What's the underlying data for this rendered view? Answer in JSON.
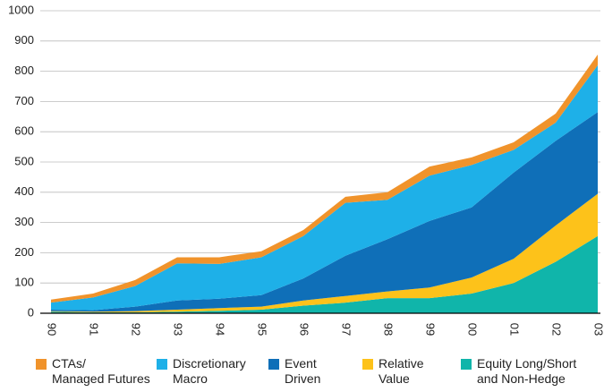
{
  "chart_data": {
    "type": "stacked_area",
    "categories": [
      "90",
      "91",
      "92",
      "93",
      "94",
      "95",
      "96",
      "97",
      "98",
      "99",
      "00",
      "01",
      "02",
      "03"
    ],
    "series": [
      {
        "name": "CTAs/\nManaged Futures",
        "color": "#f0932b",
        "values": [
          10,
          13,
          20,
          20,
          22,
          20,
          20,
          20,
          25,
          30,
          25,
          25,
          30,
          35
        ]
      },
      {
        "name": "Discretionary\nMacro",
        "color": "#1eb0e8",
        "values": [
          23,
          42,
          68,
          123,
          115,
          125,
          140,
          175,
          130,
          150,
          140,
          75,
          60,
          155
        ]
      },
      {
        "name": "Event\nDriven",
        "color": "#0f6fb8",
        "values": [
          5,
          5,
          15,
          30,
          31,
          38,
          73,
          133,
          173,
          220,
          232,
          285,
          280,
          270
        ]
      },
      {
        "name": "Relative\nValue",
        "color": "#fdc21a",
        "values": [
          2,
          2,
          4,
          7,
          9,
          10,
          17,
          22,
          22,
          35,
          53,
          80,
          120,
          140
        ]
      },
      {
        "name": "Equity Long/Short\nand Non-Hedge",
        "color": "#10b5aa",
        "values": [
          5,
          3,
          3,
          5,
          8,
          12,
          25,
          35,
          50,
          50,
          65,
          100,
          170,
          255
        ]
      }
    ],
    "ylim": [
      0,
      1000
    ],
    "yticks": [
      0,
      100,
      200,
      300,
      400,
      500,
      600,
      700,
      800,
      900,
      1000
    ],
    "grid": true
  }
}
